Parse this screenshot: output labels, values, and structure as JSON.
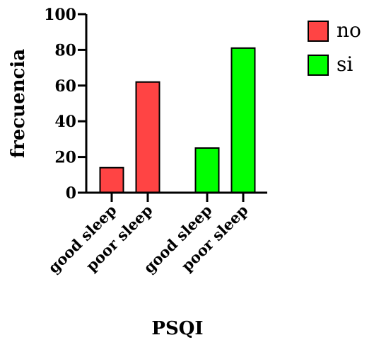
{
  "chart_data": {
    "type": "bar",
    "categories": [
      "good sleep",
      "poor sleep",
      "good sleep",
      "poor sleep"
    ],
    "series": [
      {
        "name": "no",
        "color": "#ff4444",
        "values": [
          14,
          62,
          null,
          null
        ]
      },
      {
        "name": "si",
        "color": "#00ff00",
        "values": [
          null,
          null,
          25,
          81
        ]
      }
    ],
    "xlabel": "PSQI",
    "ylabel": "frecuencia",
    "ylim": [
      0,
      100
    ],
    "yticks": [
      "0",
      "20",
      "40",
      "60",
      "80",
      "100"
    ],
    "legend_position": "top-right",
    "grid": false
  }
}
